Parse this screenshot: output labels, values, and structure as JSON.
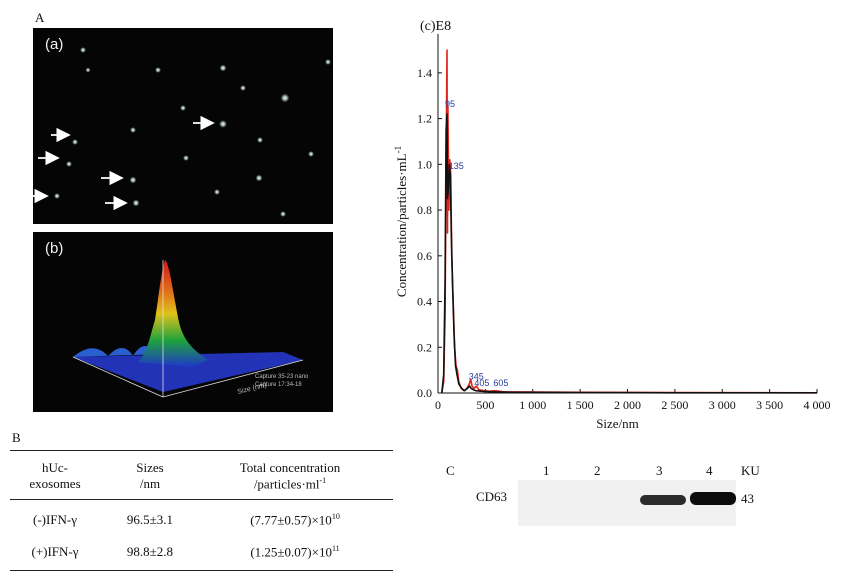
{
  "panel_a_label": "A",
  "panel_b_label": "B",
  "panel_c_label": "C",
  "microscopy": {
    "frame_a_label": "(a)",
    "frame_b_label": "(b)",
    "plot3d_axis_label": "Size (nm)",
    "capture_lines": [
      "Capture 35-23 nano",
      "Capture 17:34-18"
    ]
  },
  "table": {
    "headers": [
      {
        "l1": "hUc-",
        "l2": "exosomes"
      },
      {
        "l1": "Sizes",
        "l2": "/nm"
      },
      {
        "l1": "Total concentration",
        "l2": "/particles·ml",
        "l2_sup": "-1"
      }
    ],
    "rows": [
      {
        "group": "(-)IFN-γ",
        "size": "96.5±3.1",
        "conc": "(7.77±0.57)×10",
        "conc_sup": "10"
      },
      {
        "group": "(+)IFN-γ",
        "size": "98.8±2.8",
        "conc": "(1.25±0.07)×10",
        "conc_sup": "11"
      }
    ]
  },
  "blot": {
    "lane_labels": [
      "1",
      "2",
      "3",
      "4"
    ],
    "unit_label": "KU",
    "marker": "CD63",
    "weight": "43"
  },
  "chart_data": {
    "type": "line",
    "title": "(c)E8",
    "xlabel": "Size/nm",
    "ylabel": "Concentration/particles·mL",
    "ylabel_sup": "-1",
    "xlim": [
      0,
      4000
    ],
    "ylim": [
      0,
      1.5
    ],
    "x_ticks": [
      {
        "value": 0,
        "label": "0"
      },
      {
        "value": 500,
        "label": "500"
      },
      {
        "value": 1000,
        "label": "1 000"
      },
      {
        "value": 1500,
        "label": "1 500"
      },
      {
        "value": 2000,
        "label": "2 000"
      },
      {
        "value": 2500,
        "label": "2 500"
      },
      {
        "value": 3000,
        "label": "3 000"
      },
      {
        "value": 3500,
        "label": "3 500"
      },
      {
        "value": 4000,
        "label": "4 000"
      }
    ],
    "y_ticks": [
      {
        "value": 0,
        "label": "0.0"
      },
      {
        "value": 0.2,
        "label": "0.2"
      },
      {
        "value": 0.4,
        "label": "0.4"
      },
      {
        "value": 0.6,
        "label": "0.6"
      },
      {
        "value": 0.8,
        "label": "0.8"
      },
      {
        "value": 1.0,
        "label": "1.0"
      },
      {
        "value": 1.2,
        "label": "1.2"
      },
      {
        "value": 1.4,
        "label": "1.4"
      }
    ],
    "grid": false,
    "series": [
      {
        "color": "#e0231b",
        "x": [
          40,
          60,
          75,
          85,
          95,
          100,
          105,
          115,
          125,
          135,
          145,
          160,
          175,
          190,
          205,
          220,
          245,
          275,
          305,
          330,
          345,
          360,
          380,
          405,
          430,
          480,
          540,
          605,
          700,
          900,
          1500,
          2500,
          4000
        ],
        "y": [
          0,
          0.05,
          0.35,
          1.0,
          1.5,
          0.7,
          1.25,
          0.8,
          1.02,
          0.95,
          0.6,
          0.4,
          0.2,
          0.12,
          0.1,
          0.05,
          0.02,
          0.01,
          0.02,
          0.04,
          0.06,
          0.03,
          0.02,
          0.03,
          0.015,
          0.01,
          0.008,
          0.01,
          0.005,
          0.005,
          0.003,
          0.002,
          0.001
        ]
      },
      {
        "color": "#111111",
        "x": [
          40,
          60,
          75,
          85,
          95,
          100,
          110,
          120,
          130,
          140,
          155,
          170,
          185,
          200,
          220,
          250,
          280,
          310,
          335,
          350,
          370,
          400,
          450,
          520,
          605,
          800,
          1500,
          2500,
          4000
        ],
        "y": [
          0,
          0.08,
          0.5,
          1.15,
          1.22,
          0.85,
          0.9,
          1.0,
          0.95,
          0.7,
          0.45,
          0.25,
          0.12,
          0.08,
          0.04,
          0.02,
          0.01,
          0.02,
          0.03,
          0.02,
          0.015,
          0.01,
          0.008,
          0.006,
          0.005,
          0.003,
          0.002,
          0.001,
          0.001
        ]
      }
    ],
    "annotations": [
      {
        "text": "95",
        "x": 95,
        "y": 1.25
      },
      {
        "text": "135",
        "x": 135,
        "y": 0.98
      },
      {
        "text": "345",
        "x": 345,
        "y": 0.06
      },
      {
        "text": "405",
        "x": 405,
        "y": 0.03
      },
      {
        "text": "605",
        "x": 605,
        "y": 0.03
      }
    ],
    "annotation_color": "#2a3a9c"
  }
}
